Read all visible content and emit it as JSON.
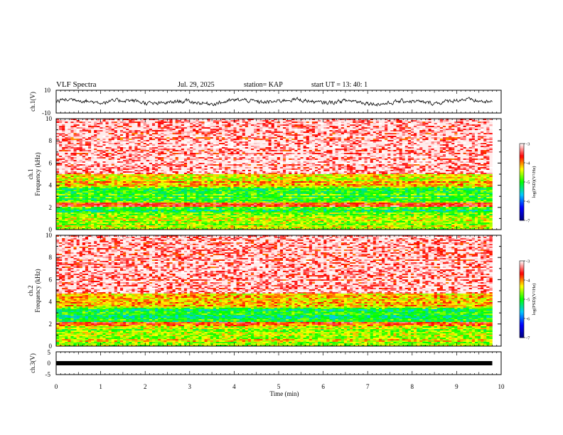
{
  "header": {
    "title": "VLF Spectra",
    "date": "Jul. 29, 2025",
    "station": "station= KAP",
    "start": "start  UT =   13: 40: 1"
  },
  "panels": {
    "ch1v": {
      "label": "ch.1(V)",
      "ymax": "10",
      "ymin": "-10"
    },
    "spec1": {
      "label_line1": "ch.1",
      "label_line2": "Frequency  (kHz)",
      "colorbar_label": "log(PSD)(V²/Hz)"
    },
    "spec2": {
      "label_line1": "ch.2",
      "label_line2": "Frequency  (kHz)",
      "colorbar_label": "log(PSD)(V²/Hz)"
    },
    "ch3v": {
      "label": "ch.3(V)",
      "ymax": "5",
      "ymid": "0",
      "ymin": "-5"
    }
  },
  "xaxis": {
    "label": "Time  (min)"
  },
  "chart_data": {
    "type": "heatmap",
    "title": "VLF Spectra",
    "xlabel": "Time (min)",
    "xlim": [
      0,
      10
    ],
    "xticks": [
      "0",
      "1",
      "2",
      "3",
      "4",
      "5",
      "6",
      "7",
      "8",
      "9",
      "10"
    ],
    "data_end_min": 9.8,
    "spectrogram_ylabel": "Frequency (kHz)",
    "spectrogram_ylim": [
      0,
      10
    ],
    "spectrogram_yticks": [
      "0",
      "2",
      "4",
      "6",
      "8",
      "10"
    ],
    "colorbar": {
      "label": "log(PSD)(V²/Hz)",
      "range": [
        -7,
        -3
      ],
      "ticks": [
        "-3",
        "-4",
        "-5",
        "-6",
        "-7"
      ],
      "colors": [
        "#000080",
        "#0000ff",
        "#00c8ff",
        "#00ff00",
        "#ffff00",
        "#ff0000",
        "#ffffff"
      ]
    },
    "series": [
      {
        "name": "ch.1 spectrogram",
        "bands_khz": [
          {
            "from": 0,
            "to": 0.6,
            "log_psd": -4.5
          },
          {
            "from": 0.6,
            "to": 1.6,
            "log_psd": -4.6
          },
          {
            "from": 1.6,
            "to": 2.1,
            "log_psd": -5.0
          },
          {
            "from": 2.1,
            "to": 2.4,
            "log_psd": -3.6
          },
          {
            "from": 2.4,
            "to": 3.9,
            "log_psd": -4.9
          },
          {
            "from": 3.9,
            "to": 5.0,
            "log_psd": -4.2
          },
          {
            "from": 5.0,
            "to": 10.0,
            "log_psd": -3.4
          }
        ]
      },
      {
        "name": "ch.2 spectrogram",
        "bands_khz": [
          {
            "from": 0,
            "to": 0.6,
            "log_psd": -4.5
          },
          {
            "from": 0.6,
            "to": 1.8,
            "log_psd": -4.6
          },
          {
            "from": 1.8,
            "to": 2.2,
            "log_psd": -3.8
          },
          {
            "from": 2.2,
            "to": 3.4,
            "log_psd": -5.1
          },
          {
            "from": 3.4,
            "to": 4.8,
            "log_psd": -4.2
          },
          {
            "from": 4.8,
            "to": 10.0,
            "log_psd": -3.4
          }
        ]
      },
      {
        "name": "ch.1(V)",
        "ylim": [
          -10,
          10
        ],
        "approx_range": [
          -5,
          5
        ]
      },
      {
        "name": "ch.3(V)",
        "ylim": [
          -5,
          5
        ],
        "approx_value": 0
      }
    ]
  }
}
